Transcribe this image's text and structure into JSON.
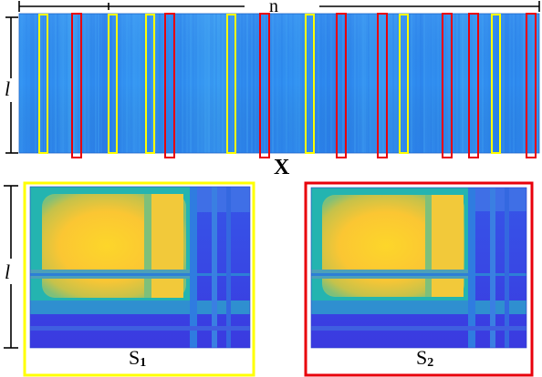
{
  "labels": {
    "width_symbol": "n",
    "height_symbol_top": "l",
    "height_symbol_bottom": "l",
    "matrix_symbol": "X",
    "s1_base": "S",
    "s1_sub": "1",
    "s2_base": "S",
    "s2_sub": "2"
  },
  "colors": {
    "yellow_window": "#ffff00",
    "red_window": "#e8000b",
    "matrix_base": "#2f8ef0",
    "heat_low": "#3a3ce6",
    "heat_mid": "#24b4b0",
    "heat_high": "#fbcc2e"
  },
  "windows": {
    "yellow_count": 7,
    "red_count": 8
  }
}
